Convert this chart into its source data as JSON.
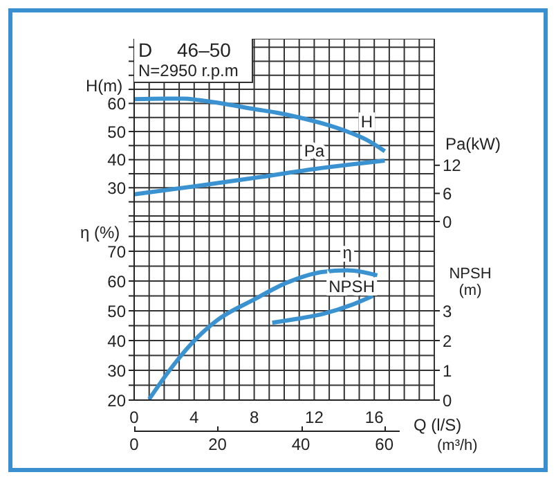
{
  "chart_data": [
    {
      "type": "line",
      "title": "D 46–50",
      "subtitle": "N=2950 r.p.m",
      "ylabel": "H(m)",
      "y2label": "Pa(kW)",
      "xlim": [
        0,
        20
      ],
      "xticks": [
        0,
        {
          "value": 1,
          "label": null
        },
        {
          "value": 2,
          "label": null
        },
        {
          "value": 3,
          "label": null
        },
        4,
        {
          "value": 5,
          "label": null
        },
        {
          "value": 6,
          "label": null
        },
        {
          "value": 7,
          "label": null
        },
        8,
        {
          "value": 9,
          "label": null
        },
        {
          "value": 10,
          "label": null
        },
        {
          "value": 11,
          "label": null
        },
        12,
        {
          "value": 13,
          "label": null
        },
        {
          "value": 14,
          "label": null
        },
        {
          "value": 15,
          "label": null
        },
        16,
        {
          "value": 17,
          "label": null
        },
        {
          "value": 18,
          "label": null
        },
        {
          "value": 19,
          "label": null
        },
        {
          "value": 20,
          "label": null
        }
      ],
      "ylim": [
        18,
        83
      ],
      "yticks": [
        {
          "value": 20,
          "label": null
        },
        {
          "value": 25,
          "label": null
        },
        30,
        {
          "value": 35,
          "label": null
        },
        40,
        {
          "value": 45,
          "label": null
        },
        50,
        {
          "value": 55,
          "label": null
        },
        60,
        {
          "value": 65,
          "label": null
        },
        {
          "value": 70,
          "label": null
        },
        {
          "value": 75,
          "label": null
        },
        {
          "value": 80,
          "label": null
        }
      ],
      "y2lim": [
        0,
        39
      ],
      "y2ticks": [
        0,
        6,
        12
      ],
      "grid": true,
      "tick_labels": "y",
      "series": [
        {
          "name": "H",
          "color": "#3a93d0",
          "x": [
            0,
            2,
            3.3,
            4.3,
            6.4,
            8,
            9.5,
            11,
            12.6,
            14.2,
            15.5,
            16.7
          ],
          "values": [
            61.5,
            61.7,
            61.7,
            61.2,
            59.5,
            58,
            56.7,
            55,
            52.8,
            50,
            47,
            43
          ]
        },
        {
          "name": "Pa",
          "color": "#3a93d0",
          "axis": "y2",
          "x": [
            0,
            4,
            8,
            12,
            16.7
          ],
          "values": [
            5.8,
            7.5,
            9.3,
            11.2,
            13
          ]
        }
      ]
    },
    {
      "type": "line",
      "ylabel": "η (%)",
      "y2label": "NPSH (m)",
      "xlabel": "Q (l/S)",
      "x2label": "(m³/h)",
      "xlim": [
        0,
        20
      ],
      "xticks": [
        0,
        {
          "value": 1,
          "label": null
        },
        {
          "value": 2,
          "label": null
        },
        {
          "value": 3,
          "label": null
        },
        4,
        {
          "value": 5,
          "label": null
        },
        {
          "value": 6,
          "label": null
        },
        {
          "value": 7,
          "label": null
        },
        8,
        {
          "value": 9,
          "label": null
        },
        {
          "value": 10,
          "label": null
        },
        {
          "value": 11,
          "label": null
        },
        12,
        {
          "value": 13,
          "label": null
        },
        {
          "value": 14,
          "label": null
        },
        {
          "value": 15,
          "label": null
        },
        16,
        {
          "value": 17,
          "label": null
        },
        {
          "value": 18,
          "label": null
        },
        {
          "value": 19,
          "label": null
        },
        {
          "value": 20,
          "label": null
        }
      ],
      "x2lim": [
        0,
        72
      ],
      "x2ticks": [
        0,
        20,
        40,
        60
      ],
      "ylim": [
        20,
        80
      ],
      "yticks": [
        20,
        {
          "value": 25,
          "label": null
        },
        30,
        {
          "value": 35,
          "label": null
        },
        40,
        {
          "value": 45,
          "label": null
        },
        50,
        {
          "value": 55,
          "label": null
        },
        60,
        {
          "value": 65,
          "label": null
        },
        70,
        {
          "value": 75,
          "label": null
        },
        {
          "value": 80,
          "label": null
        }
      ],
      "y2lim": [
        0,
        6
      ],
      "y2ticks": [
        0,
        1,
        2,
        3
      ],
      "grid": true,
      "series": [
        {
          "name": "η",
          "color": "#3a93d0",
          "x": [
            1,
            2.4,
            3.9,
            5.5,
            8,
            10.2,
            12.6,
            14.2,
            16.2
          ],
          "values": [
            20.3,
            30.3,
            39.4,
            46.7,
            53.8,
            59.5,
            63.1,
            63.6,
            61.9
          ]
        },
        {
          "name": "NPSH",
          "color": "#3a93d0",
          "axis": "y2",
          "x": [
            9.2,
            11.1,
            12.6,
            14.5,
            15.9
          ],
          "values": [
            2.6,
            2.75,
            2.9,
            3.2,
            3.5
          ]
        }
      ]
    }
  ]
}
